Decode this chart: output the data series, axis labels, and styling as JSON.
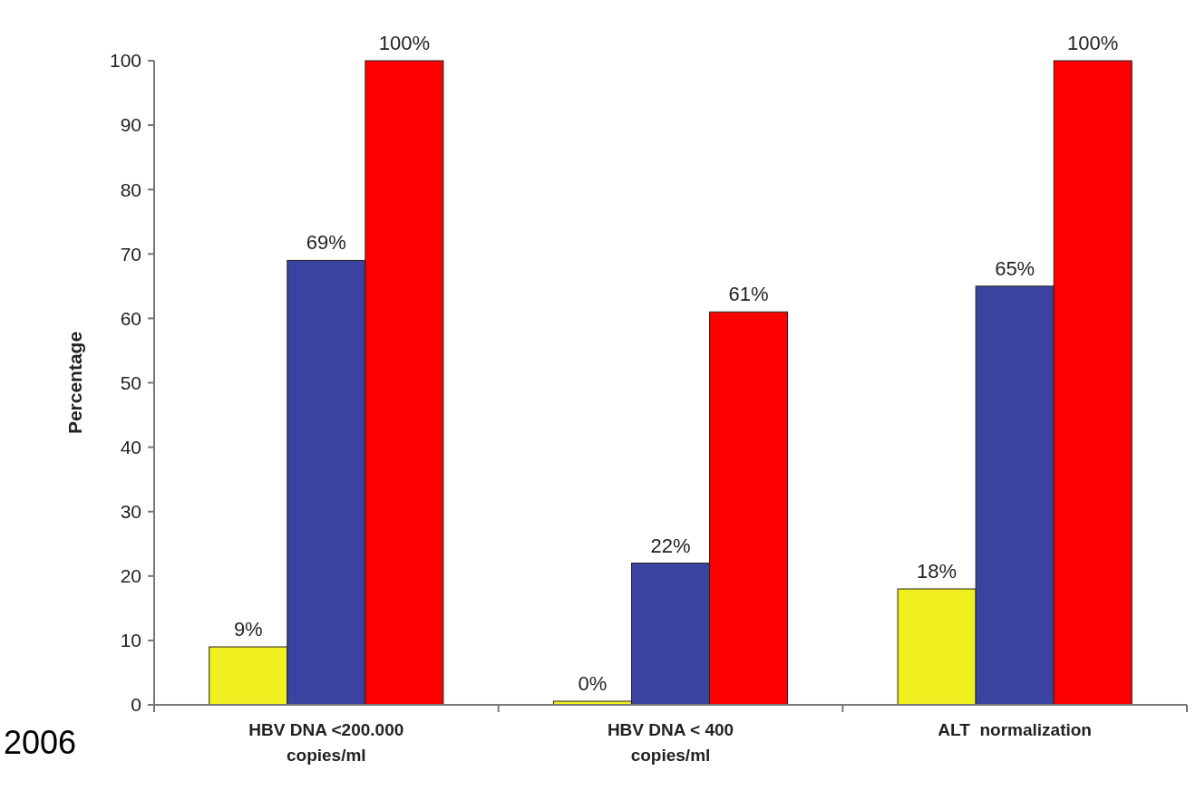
{
  "chart_data": {
    "type": "bar",
    "ylabel": "Percentage",
    "categories": [
      "HBV DNA <200.000\ncopies/ml",
      "HBV DNA < 400\ncopies/ml",
      "ALT  normalization"
    ],
    "series": [
      {
        "color": "#f0f020",
        "values": [
          9,
          0,
          18
        ],
        "value_labels": [
          "9%",
          "0%",
          "18%"
        ]
      },
      {
        "color": "#3a44a0",
        "values": [
          69,
          22,
          65
        ],
        "value_labels": [
          "69%",
          "22%",
          "65%"
        ]
      },
      {
        "color": "#ff0000",
        "values": [
          100,
          61,
          100
        ],
        "value_labels": [
          "100%",
          "61%",
          "100%"
        ]
      }
    ],
    "ylim": [
      0,
      100
    ],
    "yticks": [
      0,
      10,
      20,
      30,
      40,
      50,
      60,
      70,
      80,
      90,
      100
    ],
    "grid": false,
    "annotations": [
      "2006"
    ]
  }
}
